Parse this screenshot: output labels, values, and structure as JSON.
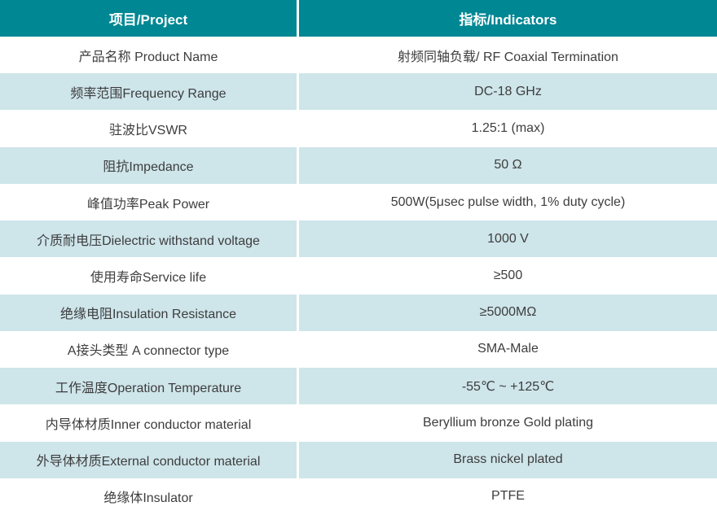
{
  "table": {
    "header": {
      "project": "项目/Project",
      "indicators": "指标/Indicators"
    },
    "rows": [
      {
        "project": "产品名称 Product Name",
        "indicator": "射频同轴负载/ RF Coaxial Termination"
      },
      {
        "project": "频率范围Frequency Range",
        "indicator": "DC-18 GHz"
      },
      {
        "project": "驻波比VSWR",
        "indicator": "1.25:1 (max)"
      },
      {
        "project": "阻抗Impedance",
        "indicator": "50 Ω"
      },
      {
        "project": "峰值功率Peak Power",
        "indicator": "500W(5μsec pulse width, 1% duty cycle)"
      },
      {
        "project": "介质耐电压Dielectric withstand voltage",
        "indicator": "1000 V"
      },
      {
        "project": "使用寿命Service life",
        "indicator": "≥500"
      },
      {
        "project": "绝缘电阻Insulation Resistance",
        "indicator": "≥5000MΩ"
      },
      {
        "project": "A接头类型 A connector type",
        "indicator": "SMA-Male"
      },
      {
        "project": "工作温度Operation Temperature",
        "indicator": "-55℃ ~ +125℃"
      },
      {
        "project": "内导体材质Inner conductor material",
        "indicator": "Beryllium bronze Gold plating"
      },
      {
        "project": "外导体材质External conductor material",
        "indicator": "Brass nickel plated"
      },
      {
        "project": "绝缘体Insulator",
        "indicator": "PTFE"
      }
    ]
  },
  "colors": {
    "header_bg": "#008794",
    "header_text": "#ffffff",
    "row_bg": "#ffffff",
    "alt_row_bg": "#cee5ea",
    "body_text": "#3d3d3d",
    "divider": "#ffffff"
  }
}
